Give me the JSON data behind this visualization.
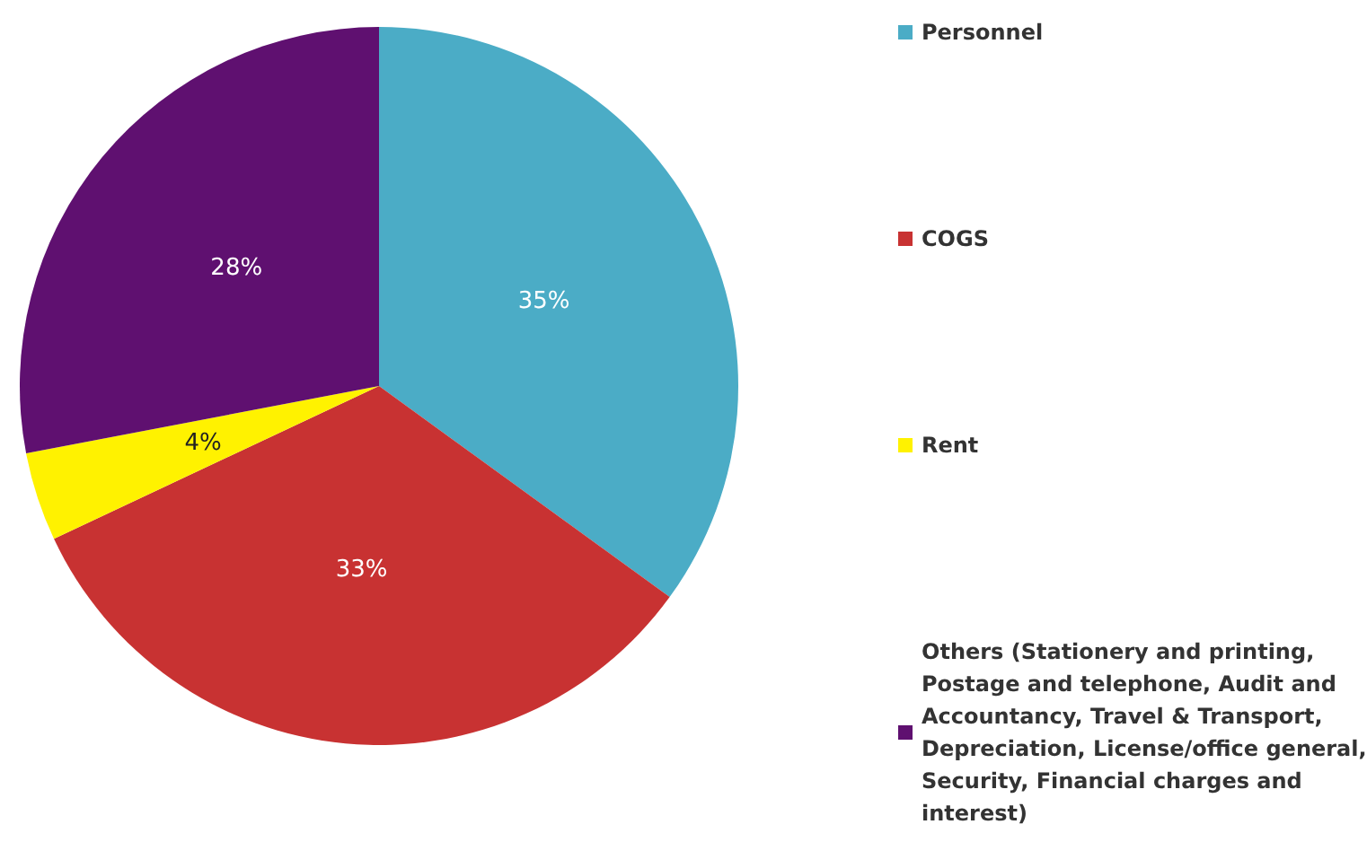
{
  "chart_data": {
    "type": "pie",
    "categories": [
      "Personnel",
      "COGS",
      "Rent",
      "Others (Stationery and printing, Postage and telephone, Audit and Accountancy, Travel & Transport, Depreciation, License/office general, Security, Financial charges and interest)"
    ],
    "values": [
      35,
      33,
      4,
      28
    ],
    "value_labels": [
      "35%",
      "33%",
      "4%",
      "28%"
    ],
    "colors": [
      "#4bacc6",
      "#c83232",
      "#fff200",
      "#5f1070"
    ],
    "legend": "right"
  }
}
